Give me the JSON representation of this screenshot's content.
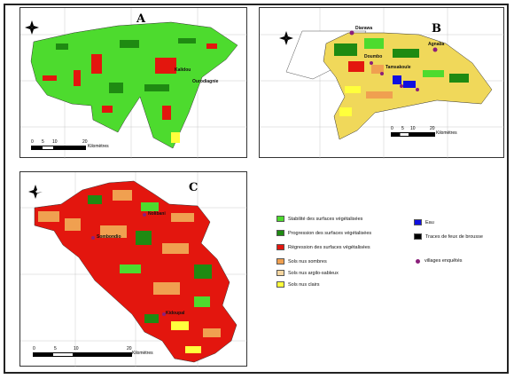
{
  "panels": {
    "a": {
      "label": "A",
      "places": [
        "Kalidou",
        "Ourodiagnie"
      ],
      "scale": {
        "ticks": [
          "0",
          "5",
          "10",
          "20"
        ],
        "unit": "Kilomètres"
      }
    },
    "b": {
      "label": "B",
      "places": [
        "Diarawa",
        "Agnaba",
        "Doumbo",
        "Tamsakoule"
      ],
      "scale": {
        "ticks": [
          "0",
          "5",
          "10",
          "20"
        ],
        "unit": "Kilomètres"
      }
    },
    "c": {
      "label": "C",
      "places": [
        "Nolibani",
        "Sombondio",
        "Kidoupal"
      ],
      "scale": {
        "ticks": [
          "0",
          "5",
          "10",
          "20"
        ],
        "unit": "Kilomètres"
      }
    }
  },
  "legend": [
    {
      "label": "Stabilité des surfaces végétalisées",
      "color": "#4ddb2e"
    },
    {
      "label": "Progression des surfaces végétalisées",
      "color": "#1f8a12"
    },
    {
      "label": "Régression des surfaces végétalisées",
      "color": "#e3160e"
    },
    {
      "label": "Sols nus sombres",
      "color": "#f0a050"
    },
    {
      "label": "Sols nus argilo-sableux",
      "color": "#f5d6a0"
    },
    {
      "label": "Sols nus clairs",
      "color": "#ffff3c"
    },
    {
      "label": "Eau",
      "color": "#1010e0"
    },
    {
      "label": "Traces de feux de brousse",
      "color": "#000000"
    },
    {
      "label": "villages enquêtés",
      "color": "#8a1f7a"
    }
  ],
  "colors": {
    "stable": "#4ddb2e",
    "progression": "#1f8a12",
    "regression": "#e3160e",
    "dark_soil": "#f0a050",
    "clay_soil": "#f5d6a0",
    "light_soil": "#ffff3c",
    "water": "#1010e0",
    "villages": "#8a1f7a"
  }
}
